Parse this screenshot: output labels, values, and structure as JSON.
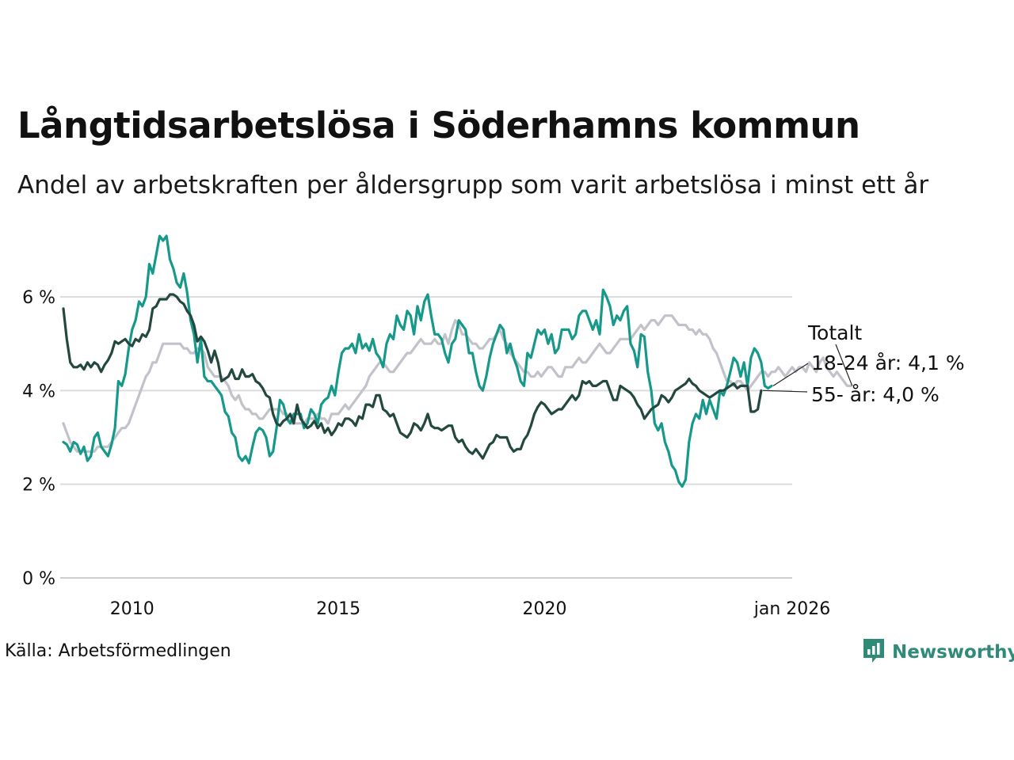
{
  "title": "Långtidsarbetslösa i Söderhamns kommun",
  "subtitle": "Andel av arbetskraften per åldersgrupp som varit arbetslösa i minst ett år",
  "source": "Källa: Arbetsförmedlingen",
  "brand": {
    "name": "Newsworthy",
    "icon": "newsworthy-logo-icon"
  },
  "chart_data": {
    "type": "line",
    "x_start": 2008.3333,
    "x_step": 0.083333,
    "xlim": [
      2008.3333,
      2026.0
    ],
    "ylim": [
      0,
      7.3
    ],
    "y_ticks": [
      {
        "value": 0,
        "label": "0 %"
      },
      {
        "value": 2,
        "label": "2 %"
      },
      {
        "value": 4,
        "label": "4 %"
      },
      {
        "value": 6,
        "label": "6 %"
      }
    ],
    "x_ticks": [
      {
        "value": 2010.0,
        "label": "2010"
      },
      {
        "value": 2015.0,
        "label": "2015"
      },
      {
        "value": 2020.0,
        "label": "2020"
      },
      {
        "value": 2026.0,
        "label": "jan 2026"
      }
    ],
    "grid": true,
    "series": [
      {
        "name": "Totalt",
        "label": "Totalt",
        "color": "#c2c2cb",
        "values": [
          3.3,
          3.1,
          2.9,
          2.8,
          2.7,
          2.7,
          2.7,
          2.7,
          2.7,
          2.7,
          2.8,
          2.8,
          2.8,
          2.8,
          2.9,
          3.0,
          3.1,
          3.2,
          3.2,
          3.3,
          3.5,
          3.7,
          3.9,
          4.1,
          4.3,
          4.4,
          4.6,
          4.6,
          4.8,
          5.0,
          5.0,
          5.0,
          5.0,
          5.0,
          5.0,
          4.9,
          4.9,
          4.8,
          4.8,
          4.9,
          4.9,
          4.8,
          4.5,
          4.4,
          4.3,
          4.3,
          4.3,
          4.2,
          4.1,
          3.9,
          3.8,
          3.9,
          3.7,
          3.6,
          3.6,
          3.5,
          3.5,
          3.4,
          3.4,
          3.5,
          3.6,
          3.6,
          3.6,
          3.6,
          3.5,
          3.5,
          3.3,
          3.3,
          3.3,
          3.3,
          3.3,
          3.4,
          3.4,
          3.4,
          3.5,
          3.4,
          3.4,
          3.3,
          3.5,
          3.5,
          3.5,
          3.6,
          3.7,
          3.6,
          3.7,
          3.8,
          3.9,
          4.0,
          4.1,
          4.3,
          4.4,
          4.5,
          4.6,
          4.6,
          4.5,
          4.4,
          4.4,
          4.5,
          4.6,
          4.7,
          4.8,
          4.8,
          4.9,
          5.0,
          5.1,
          5.0,
          5.0,
          5.0,
          5.1,
          5.0,
          5.0,
          5.2,
          5.0,
          5.3,
          5.5,
          5.4,
          5.2,
          5.2,
          5.1,
          5.0,
          5.0,
          4.9,
          4.9,
          5.0,
          5.1,
          5.1,
          5.2,
          5.3,
          5.1,
          5.0,
          4.8,
          4.7,
          4.6,
          4.5,
          4.4,
          4.4,
          4.3,
          4.3,
          4.4,
          4.3,
          4.4,
          4.5,
          4.5,
          4.4,
          4.3,
          4.3,
          4.5,
          4.5,
          4.5,
          4.6,
          4.7,
          4.6,
          4.6,
          4.7,
          4.8,
          4.9,
          5.0,
          4.9,
          4.8,
          4.8,
          4.9,
          5.0,
          5.1,
          5.1,
          5.1,
          5.1,
          5.2,
          5.3,
          5.4,
          5.3,
          5.4,
          5.5,
          5.5,
          5.4,
          5.5,
          5.6,
          5.6,
          5.6,
          5.5,
          5.4,
          5.4,
          5.4,
          5.3,
          5.3,
          5.2,
          5.3,
          5.2,
          5.2,
          5.1,
          4.9,
          4.8,
          4.6,
          4.4,
          4.2,
          4.2,
          4.1,
          4.2,
          4.2,
          4.1,
          4.0,
          4.1,
          4.2,
          4.3,
          4.4,
          4.4,
          4.3,
          4.4,
          4.4,
          4.5,
          4.4,
          4.3,
          4.4,
          4.5,
          4.4,
          4.5,
          4.5,
          4.4,
          4.6,
          4.5,
          4.4,
          4.6,
          4.7,
          4.5,
          4.4,
          4.3,
          4.4,
          4.3,
          4.2,
          4.1,
          4.1
        ]
      },
      {
        "name": "18-24 år",
        "label": "18-24 år: 4,1 %",
        "color": "#16998a",
        "values": [
          2.9,
          2.85,
          2.7,
          2.9,
          2.85,
          2.65,
          2.8,
          2.5,
          2.6,
          3.0,
          3.1,
          2.8,
          2.7,
          2.6,
          2.85,
          3.2,
          4.2,
          4.1,
          4.35,
          4.9,
          5.3,
          5.5,
          5.9,
          5.8,
          6.0,
          6.7,
          6.5,
          6.9,
          7.3,
          7.2,
          7.3,
          6.8,
          6.6,
          6.3,
          6.2,
          6.5,
          6.1,
          5.5,
          5.2,
          4.6,
          5.1,
          4.3,
          4.2,
          4.2,
          4.1,
          4.0,
          3.9,
          3.55,
          3.45,
          3.1,
          3.0,
          2.6,
          2.5,
          2.6,
          2.45,
          2.8,
          3.1,
          3.2,
          3.15,
          3.0,
          2.6,
          2.7,
          3.2,
          3.8,
          3.7,
          3.4,
          3.3,
          3.5,
          3.5,
          3.5,
          3.2,
          3.3,
          3.6,
          3.5,
          3.3,
          3.7,
          3.8,
          3.85,
          4.1,
          3.9,
          4.4,
          4.8,
          4.9,
          4.9,
          5.0,
          4.8,
          5.2,
          4.9,
          5.0,
          4.85,
          5.1,
          4.8,
          4.7,
          4.5,
          5.0,
          5.2,
          5.1,
          5.6,
          5.4,
          5.3,
          5.7,
          5.6,
          5.2,
          5.8,
          5.5,
          5.9,
          6.05,
          5.6,
          5.2,
          5.2,
          5.1,
          4.8,
          4.6,
          5.0,
          5.1,
          5.5,
          5.4,
          5.3,
          4.8,
          4.8,
          4.4,
          4.1,
          4.0,
          4.3,
          4.7,
          5.0,
          5.2,
          5.4,
          5.3,
          4.8,
          5.0,
          4.7,
          4.5,
          4.2,
          4.1,
          4.8,
          4.7,
          5.0,
          5.3,
          5.2,
          5.3,
          5.0,
          5.2,
          4.8,
          4.9,
          5.3,
          5.3,
          5.3,
          5.1,
          5.2,
          5.6,
          5.7,
          5.7,
          5.5,
          5.3,
          5.5,
          5.2,
          6.15,
          6.0,
          5.8,
          5.4,
          5.6,
          5.5,
          5.7,
          5.8,
          5.0,
          4.85,
          4.5,
          5.2,
          5.15,
          4.4,
          4.0,
          3.3,
          3.15,
          3.3,
          2.9,
          2.7,
          2.4,
          2.3,
          2.05,
          1.95,
          2.1,
          2.9,
          3.3,
          3.5,
          3.4,
          3.8,
          3.5,
          3.8,
          3.6,
          3.4,
          4.0,
          3.9,
          4.1,
          4.4,
          4.7,
          4.6,
          4.3,
          4.6,
          4.1,
          4.7,
          4.9,
          4.8,
          4.6,
          4.1,
          4.05,
          4.1
        ]
      },
      {
        "name": "55- år",
        "label": "55- år: 4,0 %",
        "color": "#23483f",
        "values": [
          5.75,
          5.1,
          4.6,
          4.5,
          4.5,
          4.55,
          4.45,
          4.6,
          4.5,
          4.6,
          4.55,
          4.4,
          4.55,
          4.65,
          4.8,
          5.05,
          5.0,
          5.05,
          5.1,
          5.0,
          4.95,
          5.1,
          5.05,
          5.2,
          5.15,
          5.3,
          5.75,
          5.8,
          5.95,
          5.95,
          5.95,
          6.05,
          6.05,
          6.0,
          5.9,
          5.85,
          5.7,
          5.6,
          5.4,
          5.05,
          5.15,
          5.05,
          4.85,
          4.6,
          4.85,
          4.6,
          4.2,
          4.25,
          4.3,
          4.45,
          4.25,
          4.25,
          4.45,
          4.3,
          4.3,
          4.35,
          4.2,
          4.15,
          4.05,
          3.9,
          3.85,
          3.5,
          3.3,
          3.25,
          3.35,
          3.4,
          3.5,
          3.3,
          3.7,
          3.4,
          3.3,
          3.2,
          3.25,
          3.35,
          3.2,
          3.3,
          3.1,
          3.2,
          3.05,
          3.15,
          3.3,
          3.25,
          3.4,
          3.4,
          3.35,
          3.25,
          3.45,
          3.4,
          3.7,
          3.7,
          3.65,
          3.9,
          3.9,
          3.6,
          3.55,
          3.45,
          3.5,
          3.3,
          3.1,
          3.05,
          3.0,
          3.1,
          3.3,
          3.25,
          3.15,
          3.3,
          3.5,
          3.25,
          3.2,
          3.2,
          3.15,
          3.2,
          3.25,
          3.25,
          3.0,
          2.9,
          2.95,
          2.8,
          2.7,
          2.65,
          2.75,
          2.65,
          2.55,
          2.7,
          2.85,
          2.9,
          3.05,
          3.0,
          3.0,
          3.0,
          2.8,
          2.7,
          2.75,
          2.75,
          2.95,
          3.05,
          3.25,
          3.5,
          3.65,
          3.75,
          3.7,
          3.6,
          3.5,
          3.55,
          3.6,
          3.6,
          3.7,
          3.8,
          3.9,
          3.8,
          3.9,
          4.2,
          4.15,
          4.2,
          4.1,
          4.1,
          4.15,
          4.2,
          4.2,
          4.0,
          3.8,
          3.8,
          4.1,
          4.05,
          4.0,
          3.95,
          3.85,
          3.7,
          3.6,
          3.4,
          3.5,
          3.6,
          3.65,
          3.7,
          3.9,
          3.85,
          3.75,
          3.85,
          4.0,
          4.05,
          4.1,
          4.15,
          4.25,
          4.15,
          4.1,
          4.0,
          3.95,
          3.9,
          3.85,
          3.9,
          3.95,
          4.0,
          4.0,
          4.05,
          4.1,
          4.15,
          4.05,
          4.1,
          4.1,
          4.1,
          3.55,
          3.55,
          3.6,
          4.0
        ]
      }
    ]
  }
}
